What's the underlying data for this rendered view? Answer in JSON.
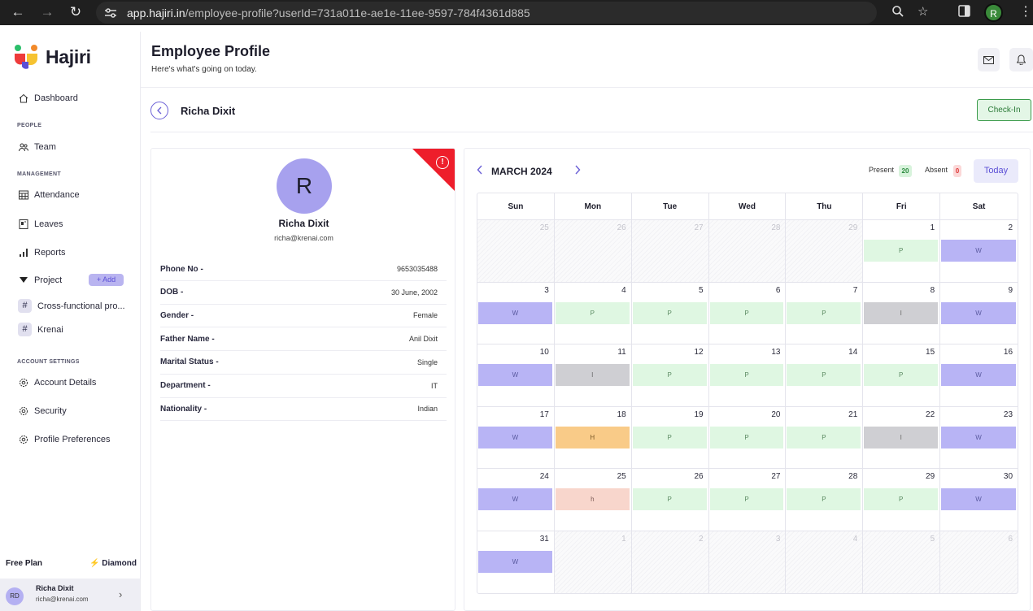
{
  "browser": {
    "url_host": "app.hajiri.in",
    "url_path": "/employee-profile?userId=731a011e-ae1e-11ee-9597-784f4361d885",
    "profile_initial": "R"
  },
  "sidebar": {
    "logo_text": "Hajiri",
    "dashboard": "Dashboard",
    "people_label": "PEOPLE",
    "team": "Team",
    "management_label": "MANAGEMENT",
    "attendance": "Attendance",
    "leaves": "Leaves",
    "reports": "Reports",
    "project": "Project",
    "add_label": "+ Add",
    "projects": [
      "Cross-functional pro...",
      "Krenai"
    ],
    "account_settings_label": "ACCOUNT SETTINGS",
    "account_details": "Account Details",
    "security": "Security",
    "profile_preferences": "Profile Preferences",
    "plan": "Free Plan",
    "upgrade": "⚡ Diamond",
    "user": {
      "initials": "RD",
      "name": "Richa Dixit",
      "email": "richa@krenai.com"
    }
  },
  "header": {
    "title": "Employee Profile",
    "subtitle": "Here's what's going on today."
  },
  "employee": {
    "name": "Richa Dixit",
    "checkin_label": "Check-In",
    "avatar_letter": "R",
    "email": "richa@krenai.com",
    "details": [
      {
        "label": "Phone No -",
        "value": "9653035488"
      },
      {
        "label": "DOB -",
        "value": "30 June, 2002"
      },
      {
        "label": "Gender -",
        "value": "Female"
      },
      {
        "label": "Father Name -",
        "value": "Anil Dixit"
      },
      {
        "label": "Marital Status -",
        "value": "Single"
      },
      {
        "label": "Department -",
        "value": "IT"
      },
      {
        "label": "Nationality -",
        "value": "Indian"
      }
    ]
  },
  "calendar": {
    "month": "MARCH 2024",
    "present_label": "Present",
    "present_count": "20",
    "absent_label": "Absent",
    "absent_count": "0",
    "today_label": "Today",
    "days_of_week": [
      "Sun",
      "Mon",
      "Tue",
      "Wed",
      "Thu",
      "Fri",
      "Sat"
    ],
    "weeks": [
      [
        {
          "d": "25",
          "out": true
        },
        {
          "d": "26",
          "out": true
        },
        {
          "d": "27",
          "out": true
        },
        {
          "d": "28",
          "out": true
        },
        {
          "d": "29",
          "out": true
        },
        {
          "d": "1",
          "s": "P"
        },
        {
          "d": "2",
          "s": "W"
        }
      ],
      [
        {
          "d": "3",
          "s": "W"
        },
        {
          "d": "4",
          "s": "P"
        },
        {
          "d": "5",
          "s": "P"
        },
        {
          "d": "6",
          "s": "P"
        },
        {
          "d": "7",
          "s": "P"
        },
        {
          "d": "8",
          "s": "I"
        },
        {
          "d": "9",
          "s": "W"
        }
      ],
      [
        {
          "d": "10",
          "s": "W"
        },
        {
          "d": "11",
          "s": "I"
        },
        {
          "d": "12",
          "s": "P"
        },
        {
          "d": "13",
          "s": "P"
        },
        {
          "d": "14",
          "s": "P"
        },
        {
          "d": "15",
          "s": "P"
        },
        {
          "d": "16",
          "s": "W"
        }
      ],
      [
        {
          "d": "17",
          "s": "W"
        },
        {
          "d": "18",
          "s": "H"
        },
        {
          "d": "19",
          "s": "P"
        },
        {
          "d": "20",
          "s": "P"
        },
        {
          "d": "21",
          "s": "P"
        },
        {
          "d": "22",
          "s": "I"
        },
        {
          "d": "23",
          "s": "W"
        }
      ],
      [
        {
          "d": "24",
          "s": "W"
        },
        {
          "d": "25",
          "s": "h"
        },
        {
          "d": "26",
          "s": "P"
        },
        {
          "d": "27",
          "s": "P"
        },
        {
          "d": "28",
          "s": "P"
        },
        {
          "d": "29",
          "s": "P"
        },
        {
          "d": "30",
          "s": "W"
        }
      ],
      [
        {
          "d": "31",
          "s": "W"
        },
        {
          "d": "1",
          "out": true
        },
        {
          "d": "2",
          "out": true
        },
        {
          "d": "3",
          "out": true
        },
        {
          "d": "4",
          "out": true
        },
        {
          "d": "5",
          "out": true
        },
        {
          "d": "6",
          "out": true
        }
      ]
    ],
    "status_colors": {
      "P": "#dff7e2",
      "W": "#b8b4f5",
      "I": "#cfcfd3",
      "H": "#f9cb88",
      "h": "#f8d6cc"
    }
  }
}
